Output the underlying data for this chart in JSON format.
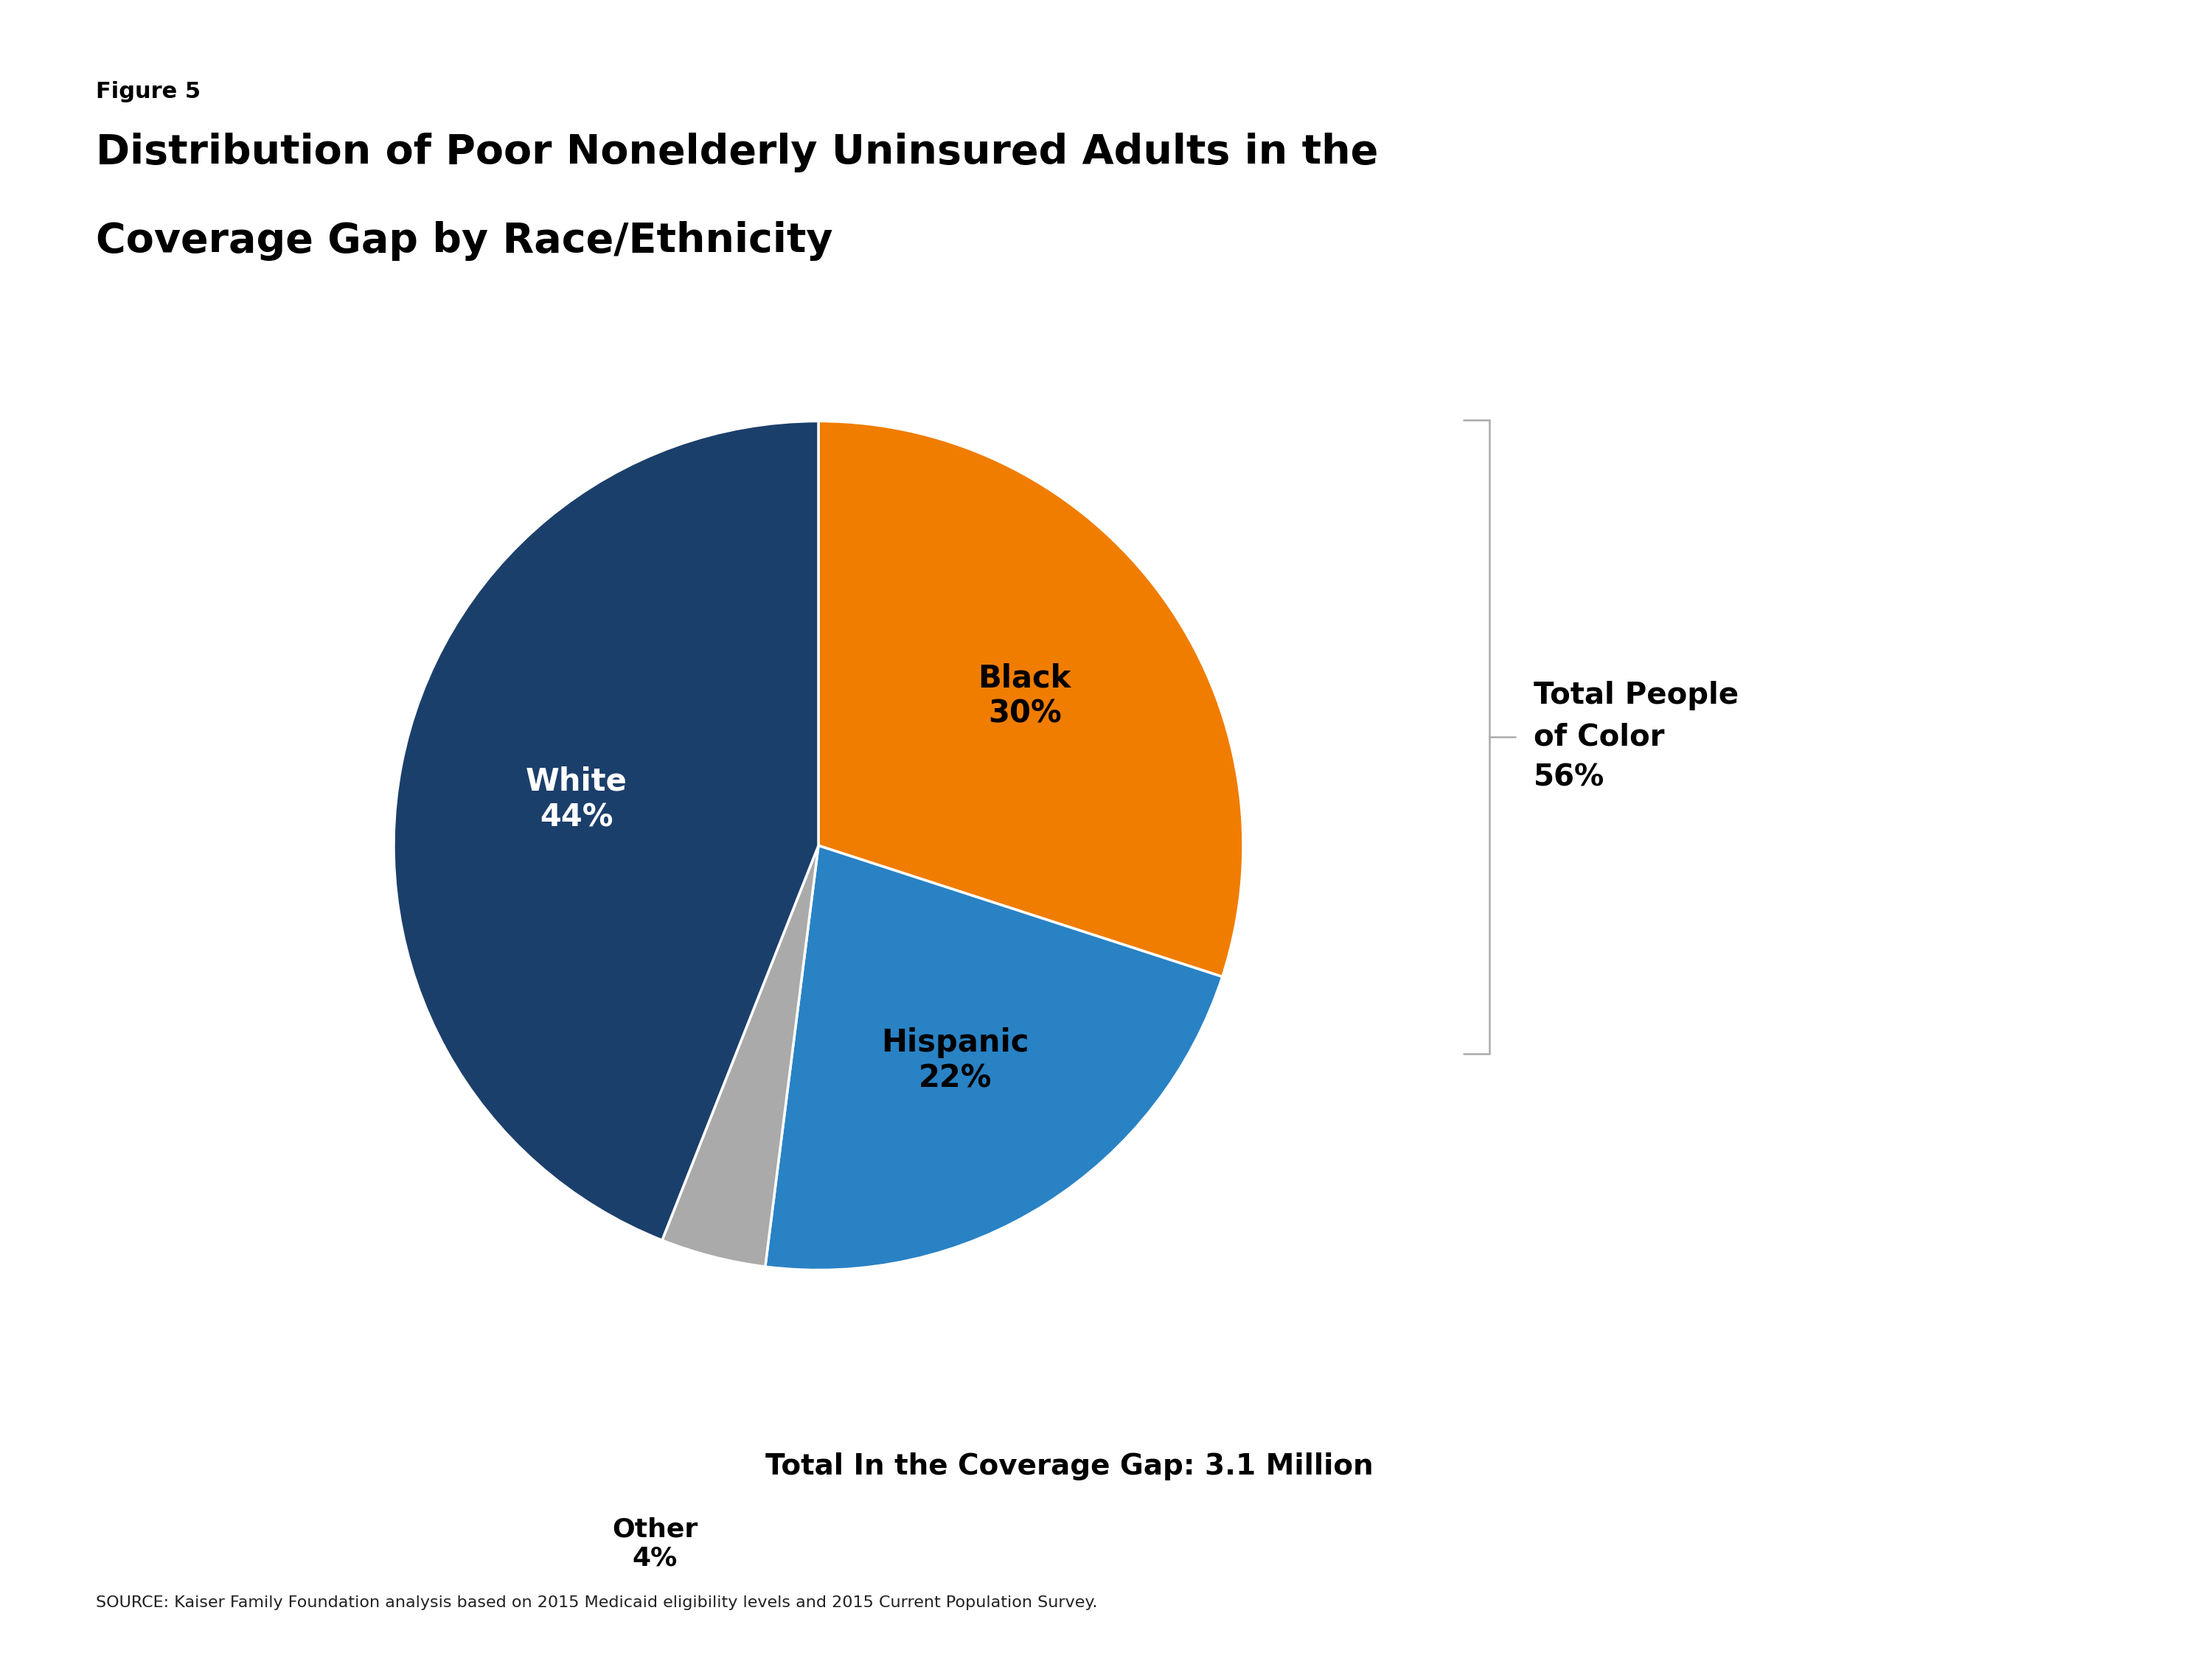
{
  "figure_label": "Figure 5",
  "title_line1": "Distribution of Poor Nonelderly Uninsured Adults in the",
  "title_line2": "Coverage Gap by Race/Ethnicity",
  "slices": [
    {
      "label": "Black",
      "pct": 30,
      "color": "#F07D00",
      "text_color": "#000000"
    },
    {
      "label": "Hispanic",
      "pct": 22,
      "color": "#2982C4",
      "text_color": "#000000"
    },
    {
      "label": "Other",
      "pct": 4,
      "color": "#AAAAAA",
      "text_color": "#000000"
    },
    {
      "label": "White",
      "pct": 44,
      "color": "#1B3F6B",
      "text_color": "#ffffff"
    }
  ],
  "total_label": "Total In the Coverage Gap: 3.1 Million",
  "people_of_color_label": "Total People\nof Color\n56%",
  "source_text": "SOURCE: Kaiser Family Foundation analysis based on 2015 Medicaid eligibility levels and 2015 Current Population Survey.",
  "background_color": "#ffffff",
  "bracket_color": "#aaaaaa",
  "kff_navy": "#1B3F6B"
}
